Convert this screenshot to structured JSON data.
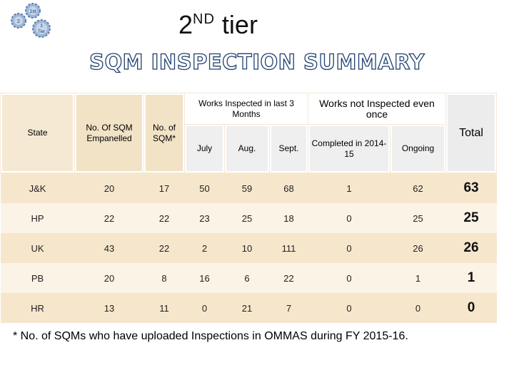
{
  "logo": {
    "labels": [
      "1st",
      "2",
      "3",
      "Tier"
    ]
  },
  "title": {
    "main": "2",
    "superscript": "ND",
    "suffix": " tier"
  },
  "subtitle": "SQM INSPECTION SUMMARY",
  "table": {
    "headers": {
      "state": "State",
      "empanelled": "No. Of SQM Empanelled",
      "sqm": "No. of SQM*",
      "works_inspected": "Works Inspected in last 3 Months",
      "months": [
        "July",
        "Aug.",
        "Sept."
      ],
      "works_not_inspected": "Works not Inspected even once",
      "completed": "Completed in 2014-15",
      "ongoing": "Ongoing",
      "total": "Total"
    },
    "rows": [
      {
        "state": "J&K",
        "empanelled": "20",
        "sqm": "17",
        "july": "50",
        "aug": "59",
        "sept": "68",
        "completed": "1",
        "ongoing": "62",
        "total": "63"
      },
      {
        "state": "HP",
        "empanelled": "22",
        "sqm": "22",
        "july": "23",
        "aug": "25",
        "sept": "18",
        "completed": "0",
        "ongoing": "25",
        "total": "25"
      },
      {
        "state": "UK",
        "empanelled": "43",
        "sqm": "22",
        "july": "2",
        "aug": "10",
        "sept": "111",
        "completed": "0",
        "ongoing": "26",
        "total": "26"
      },
      {
        "state": "PB",
        "empanelled": "20",
        "sqm": "8",
        "july": "16",
        "aug": "6",
        "sept": "22",
        "completed": "0",
        "ongoing": "1",
        "total": "1"
      },
      {
        "state": "HR",
        "empanelled": "13",
        "sqm": "11",
        "july": "0",
        "aug": "21",
        "sept": "7",
        "completed": "0",
        "ongoing": "0",
        "total": "0"
      }
    ]
  },
  "footnote": "* No. of SQMs who have uploaded Inspections in OMMAS during FY 2015-16."
}
